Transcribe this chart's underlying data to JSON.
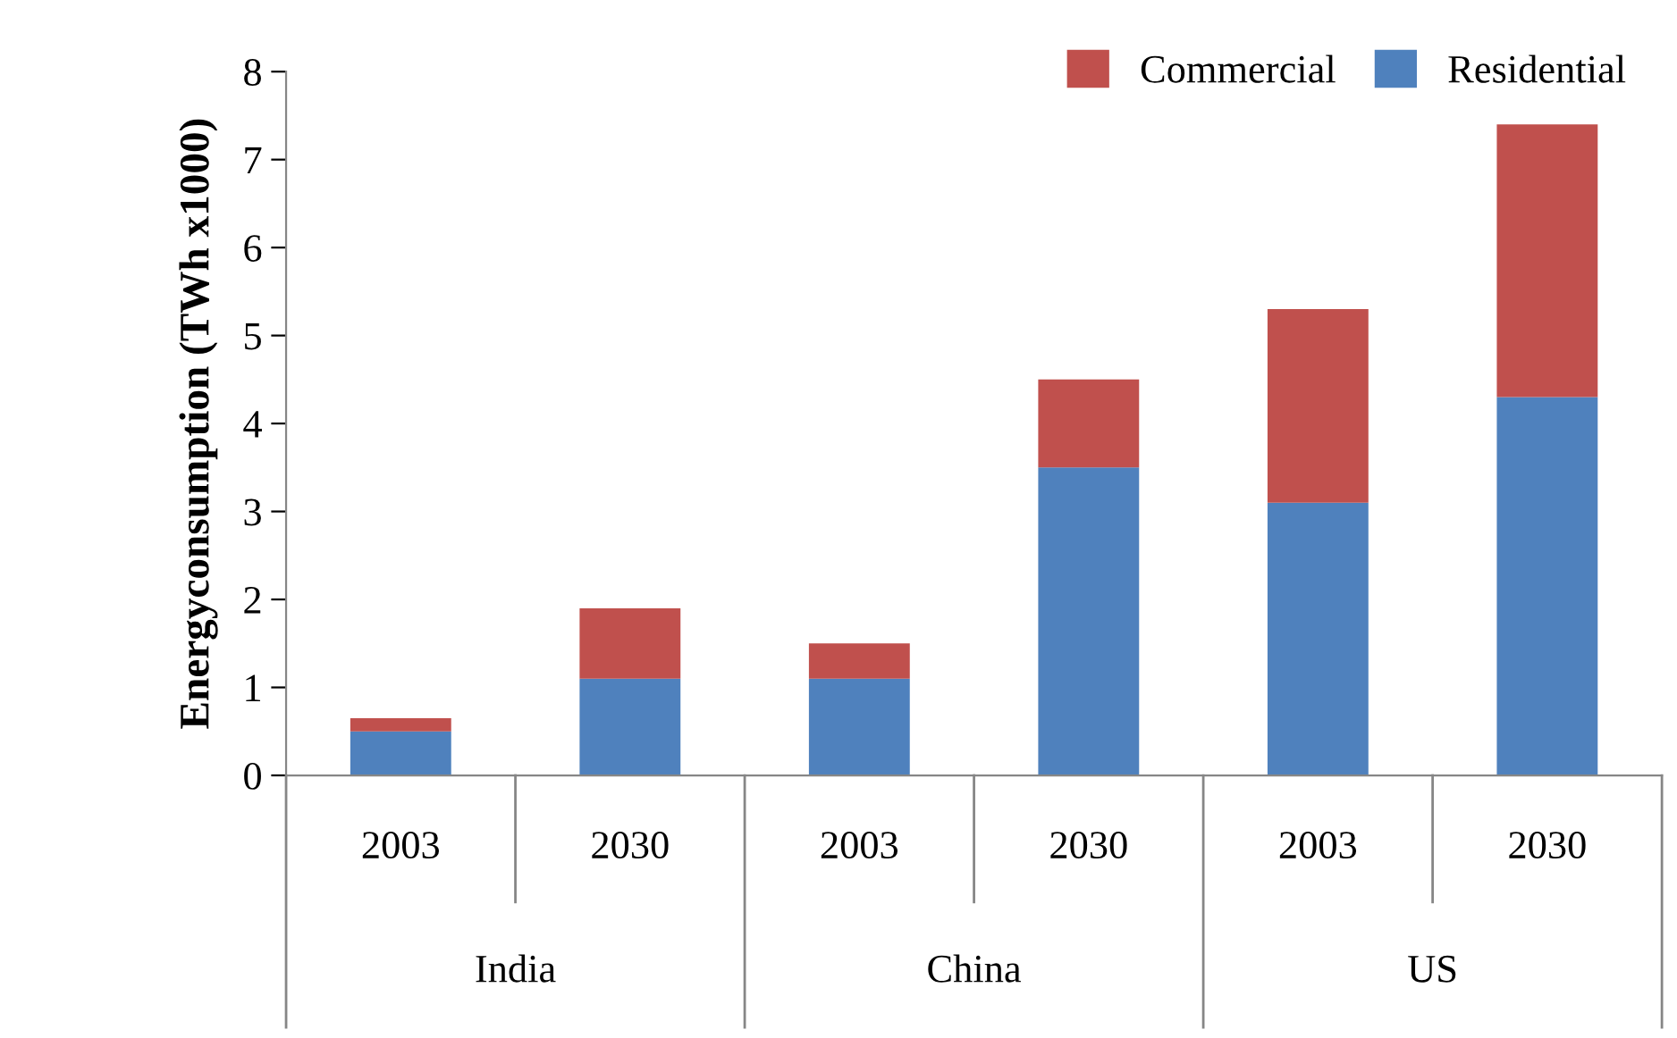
{
  "chart_data": {
    "type": "bar",
    "stacked": true,
    "ylabel": "Energyconsumption (TWh x1000)",
    "categories": [
      "2003",
      "2030",
      "2003",
      "2030",
      "2003",
      "2030"
    ],
    "annotations": [
      "India",
      "China",
      "US"
    ],
    "series": [
      {
        "name": "Residential",
        "color": "#4f81bd",
        "values": [
          0.5,
          1.1,
          1.1,
          3.5,
          3.1,
          4.3
        ]
      },
      {
        "name": "Commercial",
        "color": "#c0504d",
        "values": [
          0.15,
          0.8,
          0.4,
          1.0,
          2.2,
          3.1
        ]
      }
    ],
    "ylim": [
      0,
      8
    ],
    "yticks": [
      0,
      1,
      2,
      3,
      4,
      5,
      6,
      7,
      8
    ],
    "legend": "top right",
    "grid": false
  }
}
